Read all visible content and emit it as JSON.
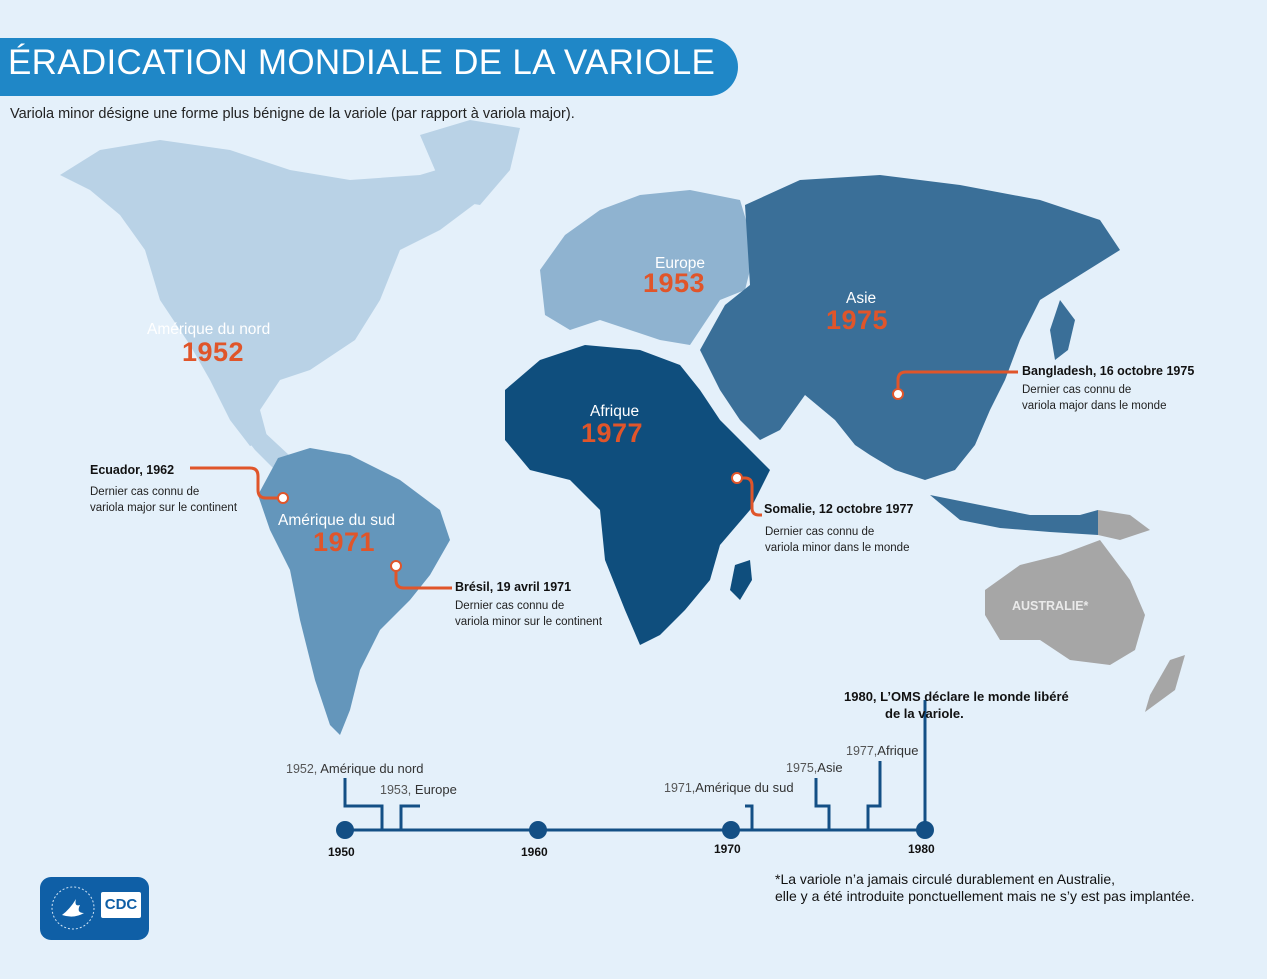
{
  "title": "ÉRADICATION MONDIALE DE LA VARIOLE",
  "subtitle": "Variola minor désigne une forme plus bénigne de la variole (par rapport à variola major).",
  "regions": [
    {
      "name": "Amérique du nord",
      "year": "1952"
    },
    {
      "name": "Europe",
      "year": "1953"
    },
    {
      "name": "Asie",
      "year": "1975"
    },
    {
      "name": "Afrique",
      "year": "1977"
    },
    {
      "name": "Amérique du sud",
      "year": "1971"
    },
    {
      "name": "AUSTRALIE*"
    }
  ],
  "callouts": [
    {
      "title": "Ecuador, 1962",
      "line1": "Dernier cas connu de",
      "line2": "variola major sur le continent"
    },
    {
      "title": "Brésil, 19 avril 1971",
      "line1": "Dernier cas connu de",
      "line2": "variola minor sur le continent"
    },
    {
      "title": "Somalie, 12 octobre 1977",
      "line1": "Dernier cas connu de",
      "line2": "variola minor dans le monde"
    },
    {
      "title": "Bangladesh, 16 octobre 1975",
      "line1": "Dernier cas connu de",
      "line2": "variola major dans le monde"
    }
  ],
  "timeline": {
    "decades": [
      "1950",
      "1960",
      "1970",
      "1980"
    ],
    "events": [
      {
        "year": "1952,",
        "label": "Amérique du nord"
      },
      {
        "year": "1953,",
        "label": "Europe"
      },
      {
        "year": "1971,",
        "label": "Amérique du sud"
      },
      {
        "year": "1975,",
        "label": "Asie"
      },
      {
        "year": "1977,",
        "label": "Afrique"
      }
    ],
    "final": {
      "year": "1980,",
      "line1": "L’OMS déclare le monde libéré",
      "line2": "de la variole."
    }
  },
  "footnote": {
    "line1": "*La variole n’a jamais circulé durablement en Australie,",
    "line2": "elle y a été introduite ponctuellement mais ne s’y est pas implantée."
  },
  "logo": {
    "text": "CDC"
  },
  "colors": {
    "background": "#e4f0fa",
    "banner": "#1f87c7",
    "north_america": "#b9d2e6",
    "europe": "#8fb3d0",
    "south_america": "#6496bb",
    "asia": "#3a6f98",
    "africa": "#0f4e7d",
    "australia": "#a6a6a6",
    "accent_orange": "#e0552a",
    "timeline": "#134f85"
  }
}
